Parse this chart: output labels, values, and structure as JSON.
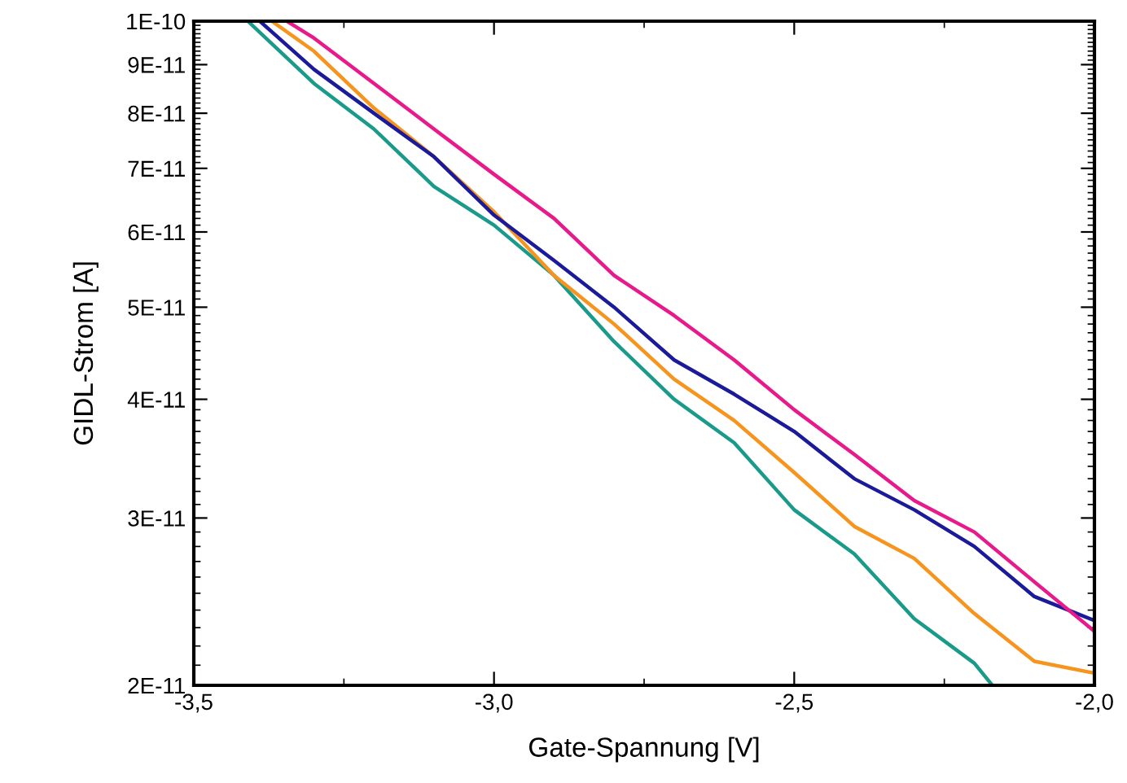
{
  "chart_data": {
    "type": "line",
    "xlabel": "Gate-Spannung [V]",
    "ylabel": "GIDL-Strom [A]",
    "log": "y",
    "grid": false,
    "legend": false,
    "marker": "none",
    "line_style": "solid",
    "xlim": [
      -3.5,
      -2.0
    ],
    "ylim": [
      2e-11,
      1e-10
    ],
    "xticks": [
      {
        "value": -3.5,
        "label": "-3,5"
      },
      {
        "value": -3.0,
        "label": "-3,0"
      },
      {
        "value": -2.5,
        "label": "-2,5"
      },
      {
        "value": -2.0,
        "label": "-2,0"
      }
    ],
    "yticks": [
      {
        "value": 2e-11,
        "label": "2E-11"
      },
      {
        "value": 3e-11,
        "label": "3E-11"
      },
      {
        "value": 4e-11,
        "label": "4E-11"
      },
      {
        "value": 5e-11,
        "label": "5E-11"
      },
      {
        "value": 6e-11,
        "label": "6E-11"
      },
      {
        "value": 7e-11,
        "label": "7E-11"
      },
      {
        "value": 8e-11,
        "label": "8E-11"
      },
      {
        "value": 9e-11,
        "label": "9E-11"
      },
      {
        "value": 1e-10,
        "label": "1E-10"
      }
    ],
    "series": [
      {
        "color": "#1a9a8a",
        "x": [
          -3.41,
          -3.3,
          -3.2,
          -3.1,
          -3.0,
          -2.9,
          -2.8,
          -2.7,
          -2.6,
          -2.5,
          -2.4,
          -2.3,
          -2.2,
          -2.17
        ],
        "values": [
          1e-10,
          8.6e-11,
          7.7e-11,
          6.7e-11,
          6.1e-11,
          5.4e-11,
          4.6e-11,
          4e-11,
          3.6e-11,
          3.06e-11,
          2.75e-11,
          2.35e-11,
          2.11e-11,
          2e-11
        ]
      },
      {
        "color": "#f7941d",
        "x": [
          -3.37,
          -3.3,
          -3.2,
          -3.1,
          -3.0,
          -2.9,
          -2.8,
          -2.7,
          -2.6,
          -2.5,
          -2.4,
          -2.3,
          -2.2,
          -2.1,
          -2.0
        ],
        "values": [
          1e-10,
          9.3e-11,
          8.1e-11,
          7.2e-11,
          6.3e-11,
          5.4e-11,
          4.8e-11,
          4.2e-11,
          3.8e-11,
          3.35e-11,
          2.94e-11,
          2.72e-11,
          2.38e-11,
          2.12e-11,
          2.06e-11
        ]
      },
      {
        "color": "#1a1a9a",
        "x": [
          -3.39,
          -3.3,
          -3.2,
          -3.1,
          -3.0,
          -2.9,
          -2.8,
          -2.7,
          -2.6,
          -2.5,
          -2.4,
          -2.3,
          -2.2,
          -2.1,
          -2.0
        ],
        "values": [
          1e-10,
          8.9e-11,
          8e-11,
          7.2e-11,
          6.25e-11,
          5.6e-11,
          5e-11,
          4.4e-11,
          4.05e-11,
          3.7e-11,
          3.3e-11,
          3.06e-11,
          2.8e-11,
          2.48e-11,
          2.34e-11
        ]
      },
      {
        "color": "#e8198b",
        "x": [
          -3.345,
          -3.3,
          -3.2,
          -3.1,
          -3.0,
          -2.9,
          -2.8,
          -2.7,
          -2.6,
          -2.5,
          -2.4,
          -2.3,
          -2.2,
          -2.1,
          -2.0
        ],
        "values": [
          1e-10,
          9.6e-11,
          8.6e-11,
          7.7e-11,
          6.9e-11,
          6.2e-11,
          5.4e-11,
          4.9e-11,
          4.4e-11,
          3.9e-11,
          3.5e-11,
          3.13e-11,
          2.9e-11,
          2.57e-11,
          2.28e-11
        ]
      }
    ]
  }
}
